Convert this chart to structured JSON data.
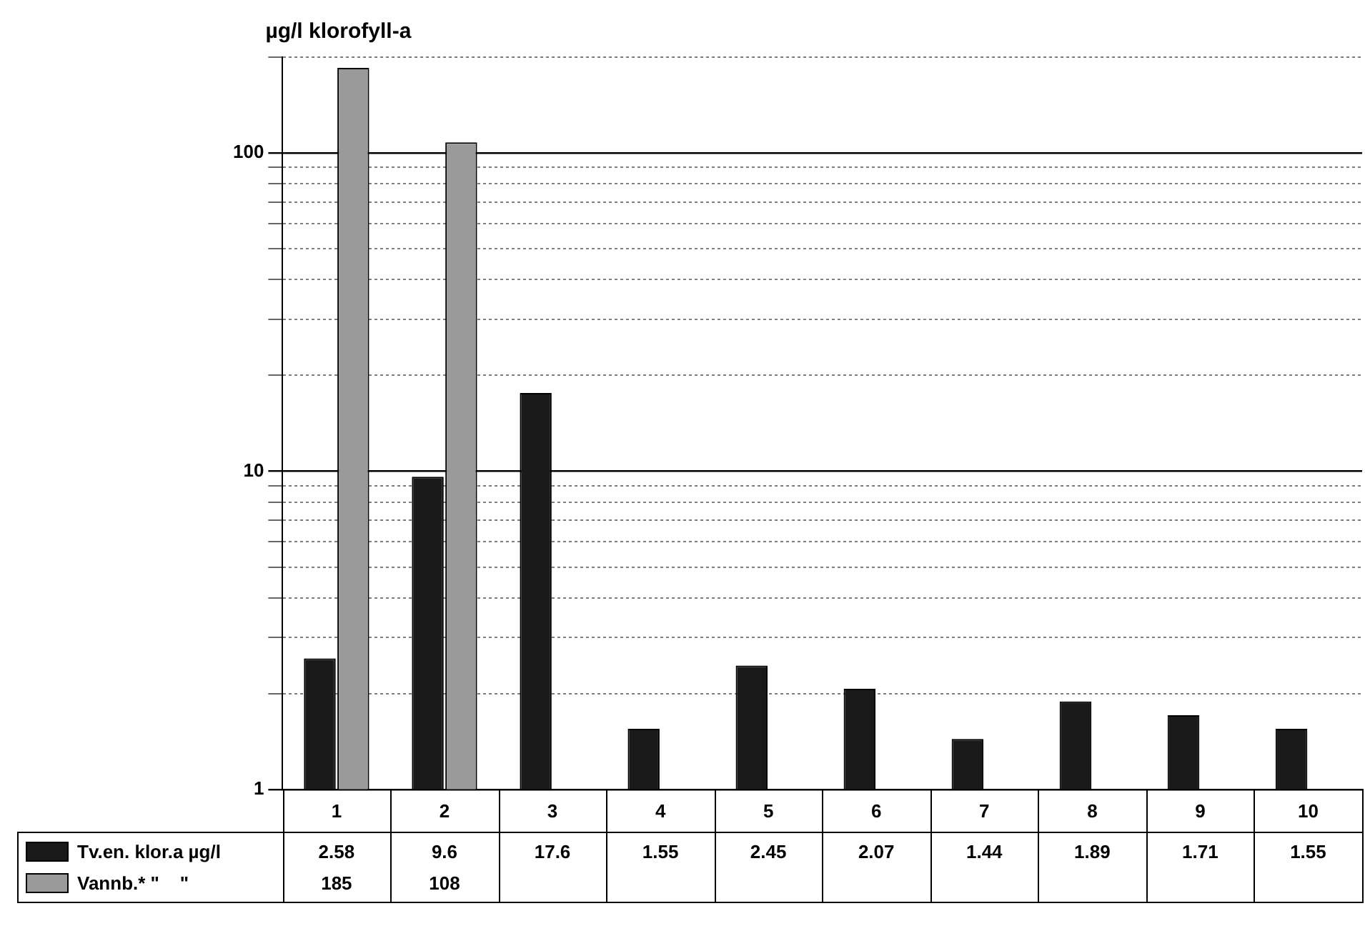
{
  "chart_data": {
    "type": "bar",
    "ylabel": "µg/l klorofyll-a",
    "categories": [
      "1",
      "2",
      "3",
      "4",
      "5",
      "6",
      "7",
      "8",
      "9",
      "10"
    ],
    "series": [
      {
        "name": "Tv.en. klor.a µg/l",
        "color": "#1a1a1a",
        "values": [
          2.58,
          9.6,
          17.6,
          1.55,
          2.45,
          2.07,
          1.44,
          1.89,
          1.71,
          1.55
        ]
      },
      {
        "name": "Vannb.* \"    \"",
        "color": "#9a9a9a",
        "values": [
          185,
          108,
          null,
          null,
          null,
          null,
          null,
          null,
          null,
          null
        ]
      }
    ],
    "log": "y",
    "ylim": [
      1,
      200
    ],
    "yticks": [
      1,
      {
        "value": 2,
        "label": null
      },
      {
        "value": 3,
        "label": null
      },
      {
        "value": 4,
        "label": null
      },
      {
        "value": 5,
        "label": null
      },
      {
        "value": 6,
        "label": null
      },
      {
        "value": 7,
        "label": null
      },
      {
        "value": 8,
        "label": null
      },
      {
        "value": 9,
        "label": null
      },
      10,
      {
        "value": 20,
        "label": null
      },
      {
        "value": 30,
        "label": null
      },
      {
        "value": 40,
        "label": null
      },
      {
        "value": 50,
        "label": null
      },
      {
        "value": 60,
        "label": null
      },
      {
        "value": 70,
        "label": null
      },
      {
        "value": 80,
        "label": null
      },
      {
        "value": 90,
        "label": null
      },
      100,
      {
        "value": 200,
        "label": null
      }
    ],
    "grid": "y",
    "legend": "bottom left",
    "data_labels": true
  }
}
